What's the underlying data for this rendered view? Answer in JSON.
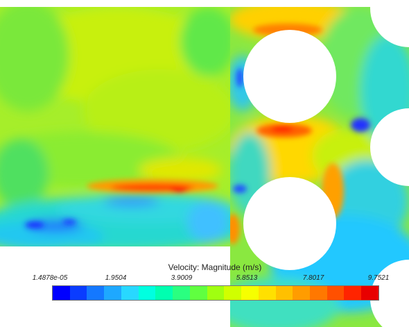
{
  "legend": {
    "title": "Velocity: Magnitude (m/s)",
    "tick_labels": [
      "1.4878e-05",
      "1.9504",
      "3.9009",
      "5.8513",
      "7.8017",
      "9.7521"
    ],
    "colormap": [
      "#0000ff",
      "#0a3cff",
      "#1478ff",
      "#1ea8ff",
      "#28d8ff",
      "#00ffe0",
      "#00ffb0",
      "#2aff80",
      "#60ff40",
      "#a0ff10",
      "#d0ff00",
      "#f6ff00",
      "#ffe000",
      "#ffc000",
      "#ff9c00",
      "#ff7800",
      "#ff5000",
      "#ff2400",
      "#e80000"
    ]
  },
  "colors": {
    "background": "#ffffff",
    "obstacle": "#ffffff",
    "field_low": "#2040ff",
    "field_mid": "#00e0d0",
    "field_green": "#80f030",
    "field_yellow": "#e0f000",
    "field_high": "#ff2000"
  }
}
